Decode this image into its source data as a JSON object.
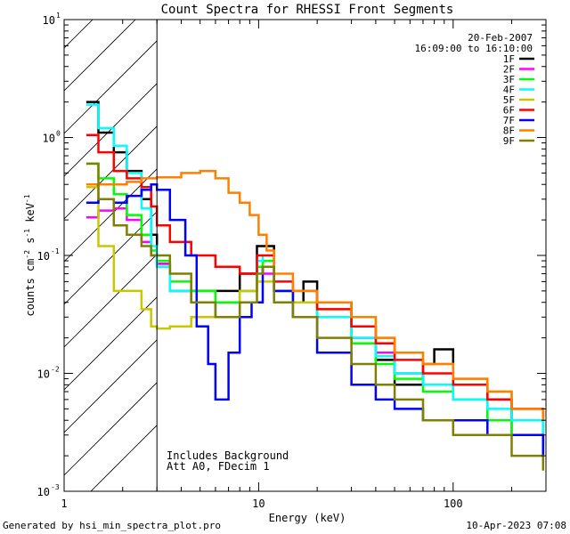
{
  "chart_data": {
    "type": "line",
    "title": "Count Spectra for RHESSI Front Segments",
    "xlabel": "Energy (keV)",
    "ylabel_parts": {
      "a": "counts cm",
      "b": "-2",
      "c": " s",
      "d": "-1",
      "e": " keV",
      "f": "-1"
    },
    "x_scale": "log",
    "y_scale": "log",
    "xlim": [
      1,
      300
    ],
    "ylim": [
      0.001,
      10
    ],
    "x_ticks": [
      {
        "value": 1,
        "label": "1"
      },
      {
        "value": 10,
        "label": "10"
      },
      {
        "value": 100,
        "label": "100"
      }
    ],
    "y_ticks": [
      {
        "value": 10,
        "base": "10",
        "exp": "1"
      },
      {
        "value": 1,
        "base": "10",
        "exp": "0"
      },
      {
        "value": 0.1,
        "base": "10",
        "exp": "-1"
      },
      {
        "value": 0.01,
        "base": "10",
        "exp": "-2"
      },
      {
        "value": 0.001,
        "base": "10",
        "exp": "-3"
      }
    ],
    "hatch_region_keV": [
      1,
      3
    ],
    "date": "20-Feb-2007",
    "time_range": "16:09:00 to 16:10:00",
    "annotations": [
      "Includes Background",
      "Att A0, FDecim 1"
    ],
    "series": [
      {
        "name": "1F",
        "color": "#000000",
        "points": [
          [
            1.3,
            2.0
          ],
          [
            1.5,
            1.1
          ],
          [
            1.8,
            0.75
          ],
          [
            2.1,
            0.52
          ],
          [
            2.5,
            0.3
          ],
          [
            2.8,
            0.15
          ],
          [
            3.0,
            0.085
          ],
          [
            3.5,
            0.05
          ],
          [
            4.5,
            0.05
          ],
          [
            6,
            0.05
          ],
          [
            8,
            0.07
          ],
          [
            9.8,
            0.12
          ],
          [
            10.5,
            0.12
          ],
          [
            12,
            0.05
          ],
          [
            15,
            0.04
          ],
          [
            17,
            0.06
          ],
          [
            20,
            0.04
          ],
          [
            30,
            0.025
          ],
          [
            40,
            0.013
          ],
          [
            50,
            0.008
          ],
          [
            70,
            0.012
          ],
          [
            80,
            0.016
          ],
          [
            100,
            0.008
          ],
          [
            150,
            0.006
          ],
          [
            200,
            0.004
          ],
          [
            290,
            0.0025
          ]
        ]
      },
      {
        "name": "2F",
        "color": "#ff00ff",
        "points": [
          [
            1.3,
            0.21
          ],
          [
            1.5,
            0.24
          ],
          [
            1.8,
            0.25
          ],
          [
            2.1,
            0.2
          ],
          [
            2.5,
            0.13
          ],
          [
            2.8,
            0.1
          ],
          [
            3.0,
            0.085
          ],
          [
            3.5,
            0.05
          ],
          [
            4.5,
            0.04
          ],
          [
            6,
            0.03
          ],
          [
            8,
            0.05
          ],
          [
            9.8,
            0.08
          ],
          [
            10.5,
            0.07
          ],
          [
            12,
            0.05
          ],
          [
            15,
            0.04
          ],
          [
            20,
            0.03
          ],
          [
            30,
            0.02
          ],
          [
            40,
            0.015
          ],
          [
            50,
            0.01
          ],
          [
            70,
            0.008
          ],
          [
            100,
            0.006
          ],
          [
            150,
            0.004
          ],
          [
            200,
            0.003
          ],
          [
            290,
            0.002
          ]
        ]
      },
      {
        "name": "3F",
        "color": "#00ff00",
        "points": [
          [
            1.3,
            0.6
          ],
          [
            1.5,
            0.45
          ],
          [
            1.8,
            0.33
          ],
          [
            2.1,
            0.22
          ],
          [
            2.5,
            0.15
          ],
          [
            2.8,
            0.11
          ],
          [
            3.0,
            0.09
          ],
          [
            3.5,
            0.06
          ],
          [
            4.5,
            0.05
          ],
          [
            6,
            0.04
          ],
          [
            8,
            0.05
          ],
          [
            9.8,
            0.08
          ],
          [
            10.5,
            0.09
          ],
          [
            12,
            0.05
          ],
          [
            15,
            0.04
          ],
          [
            20,
            0.03
          ],
          [
            30,
            0.018
          ],
          [
            40,
            0.012
          ],
          [
            50,
            0.009
          ],
          [
            70,
            0.007
          ],
          [
            100,
            0.006
          ],
          [
            150,
            0.004
          ],
          [
            200,
            0.003
          ],
          [
            290,
            0.002
          ]
        ]
      },
      {
        "name": "4F",
        "color": "#00ffff",
        "points": [
          [
            1.3,
            1.9
          ],
          [
            1.5,
            1.2
          ],
          [
            1.8,
            0.85
          ],
          [
            2.1,
            0.5
          ],
          [
            2.5,
            0.25
          ],
          [
            2.8,
            0.12
          ],
          [
            3.0,
            0.08
          ],
          [
            3.5,
            0.05
          ],
          [
            4.5,
            0.04
          ],
          [
            6,
            0.03
          ],
          [
            8,
            0.05
          ],
          [
            9.8,
            0.09
          ],
          [
            10.5,
            0.1
          ],
          [
            12,
            0.05
          ],
          [
            15,
            0.04
          ],
          [
            20,
            0.03
          ],
          [
            30,
            0.02
          ],
          [
            40,
            0.014
          ],
          [
            50,
            0.01
          ],
          [
            70,
            0.008
          ],
          [
            100,
            0.006
          ],
          [
            150,
            0.005
          ],
          [
            200,
            0.004
          ],
          [
            290,
            0.003
          ]
        ]
      },
      {
        "name": "5F",
        "color": "#c8c800",
        "points": [
          [
            1.3,
            0.38
          ],
          [
            1.5,
            0.12
          ],
          [
            1.8,
            0.05
          ],
          [
            2.1,
            0.05
          ],
          [
            2.5,
            0.035
          ],
          [
            2.8,
            0.025
          ],
          [
            3.0,
            0.024
          ],
          [
            3.5,
            0.025
          ],
          [
            4.5,
            0.03
          ],
          [
            6,
            0.03
          ],
          [
            8,
            0.05
          ],
          [
            9.8,
            0.06
          ],
          [
            10.5,
            0.06
          ],
          [
            12,
            0.05
          ],
          [
            15,
            0.04
          ],
          [
            20,
            0.035
          ],
          [
            30,
            0.03
          ],
          [
            40,
            0.02
          ],
          [
            50,
            0.015
          ],
          [
            70,
            0.012
          ],
          [
            100,
            0.009
          ],
          [
            150,
            0.007
          ],
          [
            200,
            0.005
          ],
          [
            290,
            0.004
          ]
        ]
      },
      {
        "name": "6F",
        "color": "#ff0000",
        "points": [
          [
            1.3,
            1.05
          ],
          [
            1.5,
            0.75
          ],
          [
            1.8,
            0.52
          ],
          [
            2.1,
            0.45
          ],
          [
            2.5,
            0.38
          ],
          [
            2.8,
            0.26
          ],
          [
            3.0,
            0.18
          ],
          [
            3.5,
            0.13
          ],
          [
            4.5,
            0.1
          ],
          [
            6,
            0.08
          ],
          [
            8,
            0.07
          ],
          [
            9.8,
            0.1
          ],
          [
            10.5,
            0.1
          ],
          [
            12,
            0.06
          ],
          [
            15,
            0.05
          ],
          [
            20,
            0.035
          ],
          [
            30,
            0.025
          ],
          [
            40,
            0.018
          ],
          [
            50,
            0.013
          ],
          [
            70,
            0.01
          ],
          [
            100,
            0.008
          ],
          [
            150,
            0.006
          ],
          [
            200,
            0.005
          ],
          [
            290,
            0.004
          ]
        ]
      },
      {
        "name": "7F",
        "color": "#0000ff",
        "points": [
          [
            1.3,
            0.28
          ],
          [
            1.5,
            0.3
          ],
          [
            1.8,
            0.28
          ],
          [
            2.1,
            0.32
          ],
          [
            2.5,
            0.36
          ],
          [
            2.8,
            0.4
          ],
          [
            3.0,
            0.36
          ],
          [
            3.5,
            0.2
          ],
          [
            4.2,
            0.1
          ],
          [
            4.8,
            0.025
          ],
          [
            5.5,
            0.012
          ],
          [
            6,
            0.006
          ],
          [
            7,
            0.015
          ],
          [
            8,
            0.03
          ],
          [
            9.2,
            0.04
          ],
          [
            10.5,
            0.08
          ],
          [
            12,
            0.05
          ],
          [
            15,
            0.03
          ],
          [
            20,
            0.015
          ],
          [
            30,
            0.008
          ],
          [
            40,
            0.006
          ],
          [
            50,
            0.005
          ],
          [
            70,
            0.004
          ],
          [
            100,
            0.004
          ],
          [
            150,
            0.003
          ],
          [
            200,
            0.003
          ],
          [
            290,
            0.002
          ]
        ]
      },
      {
        "name": "8F",
        "color": "#ff8000",
        "points": [
          [
            1.3,
            0.4
          ],
          [
            1.5,
            0.4
          ],
          [
            1.8,
            0.4
          ],
          [
            2.1,
            0.42
          ],
          [
            2.5,
            0.45
          ],
          [
            3.0,
            0.46
          ],
          [
            4.0,
            0.5
          ],
          [
            5.0,
            0.52
          ],
          [
            6.0,
            0.45
          ],
          [
            7.0,
            0.34
          ],
          [
            8.0,
            0.28
          ],
          [
            9.0,
            0.22
          ],
          [
            10.0,
            0.15
          ],
          [
            11.0,
            0.11
          ],
          [
            12,
            0.07
          ],
          [
            15,
            0.05
          ],
          [
            20,
            0.04
          ],
          [
            30,
            0.03
          ],
          [
            40,
            0.02
          ],
          [
            50,
            0.015
          ],
          [
            70,
            0.012
          ],
          [
            100,
            0.009
          ],
          [
            150,
            0.007
          ],
          [
            200,
            0.005
          ],
          [
            290,
            0.004
          ]
        ]
      },
      {
        "name": "9F",
        "color": "#808000",
        "points": [
          [
            1.3,
            0.6
          ],
          [
            1.5,
            0.3
          ],
          [
            1.8,
            0.18
          ],
          [
            2.1,
            0.15
          ],
          [
            2.5,
            0.12
          ],
          [
            2.8,
            0.1
          ],
          [
            3.0,
            0.1
          ],
          [
            3.5,
            0.07
          ],
          [
            4.5,
            0.04
          ],
          [
            6,
            0.03
          ],
          [
            8,
            0.04
          ],
          [
            9.8,
            0.07
          ],
          [
            10.5,
            0.08
          ],
          [
            12,
            0.04
          ],
          [
            15,
            0.03
          ],
          [
            20,
            0.02
          ],
          [
            30,
            0.012
          ],
          [
            40,
            0.008
          ],
          [
            50,
            0.006
          ],
          [
            70,
            0.004
          ],
          [
            100,
            0.003
          ],
          [
            150,
            0.003
          ],
          [
            200,
            0.002
          ],
          [
            290,
            0.0015
          ]
        ]
      }
    ]
  },
  "footer": {
    "generated_by": "Generated by hsi_min_spectra_plot.pro",
    "timestamp": "10-Apr-2023 07:08"
  }
}
